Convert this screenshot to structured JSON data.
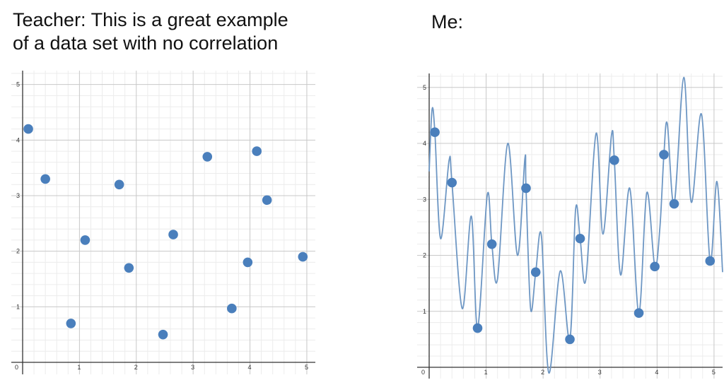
{
  "captions": {
    "left_line1": "Teacher: This is a great example",
    "left_line2": "of a data set with no correlation",
    "right": "Me:"
  },
  "colors": {
    "point": "#4a7fbc",
    "curve": "#6e97c4",
    "grid_major": "#c8c8c8",
    "grid_minor": "#ececec",
    "axis": "#333333"
  },
  "chart_data": [
    {
      "type": "scatter",
      "title": "",
      "xlabel": "",
      "ylabel": "",
      "xlim": [
        0,
        5.15
      ],
      "ylim": [
        0,
        5.25
      ],
      "xticks": [
        "0",
        "1",
        "2",
        "3",
        "4",
        "5"
      ],
      "yticks": [
        "1",
        "2",
        "3",
        "4",
        "5"
      ],
      "grid": true,
      "points": [
        {
          "x": 0.1,
          "y": 4.2
        },
        {
          "x": 0.4,
          "y": 3.3
        },
        {
          "x": 0.85,
          "y": 0.7
        },
        {
          "x": 1.1,
          "y": 2.2
        },
        {
          "x": 1.7,
          "y": 3.2
        },
        {
          "x": 1.87,
          "y": 1.7
        },
        {
          "x": 2.47,
          "y": 0.5
        },
        {
          "x": 2.65,
          "y": 2.3
        },
        {
          "x": 3.25,
          "y": 3.7
        },
        {
          "x": 3.68,
          "y": 0.97
        },
        {
          "x": 3.96,
          "y": 1.8
        },
        {
          "x": 4.12,
          "y": 3.8
        },
        {
          "x": 4.3,
          "y": 2.92
        },
        {
          "x": 4.93,
          "y": 1.9
        }
      ]
    },
    {
      "type": "scatter",
      "title": "",
      "xlabel": "",
      "ylabel": "",
      "xlim": [
        0,
        5.15
      ],
      "ylim": [
        0,
        5.25
      ],
      "xticks": [
        "0",
        "1",
        "2",
        "3",
        "4",
        "5"
      ],
      "yticks": [
        "1",
        "2",
        "3",
        "4",
        "5"
      ],
      "grid": true,
      "fitted_curve": "overfit interpolating curve through every point",
      "points": [
        {
          "x": 0.1,
          "y": 4.2
        },
        {
          "x": 0.4,
          "y": 3.3
        },
        {
          "x": 0.85,
          "y": 0.7
        },
        {
          "x": 1.1,
          "y": 2.2
        },
        {
          "x": 1.7,
          "y": 3.2
        },
        {
          "x": 1.87,
          "y": 1.7
        },
        {
          "x": 2.47,
          "y": 0.5
        },
        {
          "x": 2.65,
          "y": 2.3
        },
        {
          "x": 3.25,
          "y": 3.7
        },
        {
          "x": 3.68,
          "y": 0.97
        },
        {
          "x": 3.96,
          "y": 1.8
        },
        {
          "x": 4.12,
          "y": 3.8
        },
        {
          "x": 4.3,
          "y": 2.92
        },
        {
          "x": 4.93,
          "y": 1.9
        }
      ],
      "curve": [
        {
          "x": 0.0,
          "y": 3.5
        },
        {
          "x": 0.05,
          "y": 4.6
        },
        {
          "x": 0.1,
          "y": 4.2
        },
        {
          "x": 0.2,
          "y": 2.3
        },
        {
          "x": 0.35,
          "y": 3.7
        },
        {
          "x": 0.4,
          "y": 3.3
        },
        {
          "x": 0.58,
          "y": 1.05
        },
        {
          "x": 0.74,
          "y": 2.7
        },
        {
          "x": 0.85,
          "y": 0.7
        },
        {
          "x": 1.02,
          "y": 3.08
        },
        {
          "x": 1.1,
          "y": 2.2
        },
        {
          "x": 1.2,
          "y": 1.58
        },
        {
          "x": 1.38,
          "y": 4.0
        },
        {
          "x": 1.55,
          "y": 2.0
        },
        {
          "x": 1.68,
          "y": 3.73
        },
        {
          "x": 1.7,
          "y": 3.2
        },
        {
          "x": 1.78,
          "y": 1.05
        },
        {
          "x": 1.87,
          "y": 1.7
        },
        {
          "x": 1.97,
          "y": 2.35
        },
        {
          "x": 2.1,
          "y": -0.1
        },
        {
          "x": 2.3,
          "y": 1.72
        },
        {
          "x": 2.47,
          "y": 0.5
        },
        {
          "x": 2.57,
          "y": 2.82
        },
        {
          "x": 2.65,
          "y": 2.3
        },
        {
          "x": 2.75,
          "y": 1.57
        },
        {
          "x": 2.93,
          "y": 4.18
        },
        {
          "x": 3.05,
          "y": 2.38
        },
        {
          "x": 3.2,
          "y": 4.15
        },
        {
          "x": 3.25,
          "y": 3.7
        },
        {
          "x": 3.36,
          "y": 1.65
        },
        {
          "x": 3.52,
          "y": 3.2
        },
        {
          "x": 3.68,
          "y": 0.97
        },
        {
          "x": 3.82,
          "y": 3.12
        },
        {
          "x": 3.96,
          "y": 1.8
        },
        {
          "x": 4.05,
          "y": 2.5
        },
        {
          "x": 4.12,
          "y": 3.8
        },
        {
          "x": 4.18,
          "y": 4.35
        },
        {
          "x": 4.3,
          "y": 2.92
        },
        {
          "x": 4.47,
          "y": 5.18
        },
        {
          "x": 4.6,
          "y": 2.95
        },
        {
          "x": 4.78,
          "y": 4.52
        },
        {
          "x": 4.93,
          "y": 1.9
        },
        {
          "x": 5.05,
          "y": 3.32
        },
        {
          "x": 5.15,
          "y": 1.7
        }
      ]
    }
  ]
}
